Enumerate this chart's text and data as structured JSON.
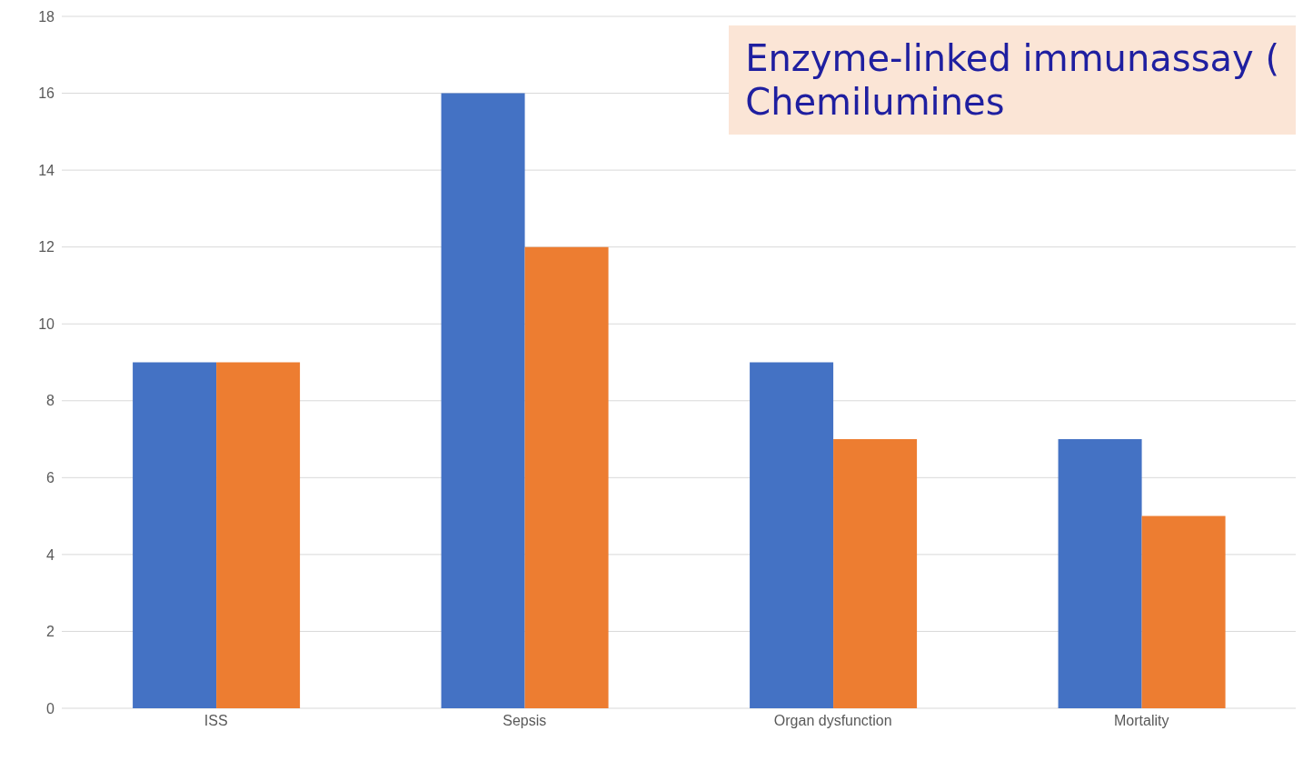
{
  "chart_data": {
    "type": "bar",
    "categories": [
      "ISS",
      "Sepsis",
      "Organ dysfunction",
      "Mortality"
    ],
    "series": [
      {
        "color": "#4472c4",
        "values": [
          9,
          16,
          9,
          7
        ]
      },
      {
        "color": "#ed7d31",
        "values": [
          9,
          12,
          7,
          5
        ]
      }
    ],
    "ylim": [
      0,
      18
    ],
    "yticks": [
      0,
      2,
      4,
      6,
      8,
      10,
      12,
      14,
      16,
      18
    ],
    "grid": "y",
    "legend": false,
    "annotations": [
      "Enzyme-linked immunassay (",
      "Chemilumines"
    ]
  }
}
